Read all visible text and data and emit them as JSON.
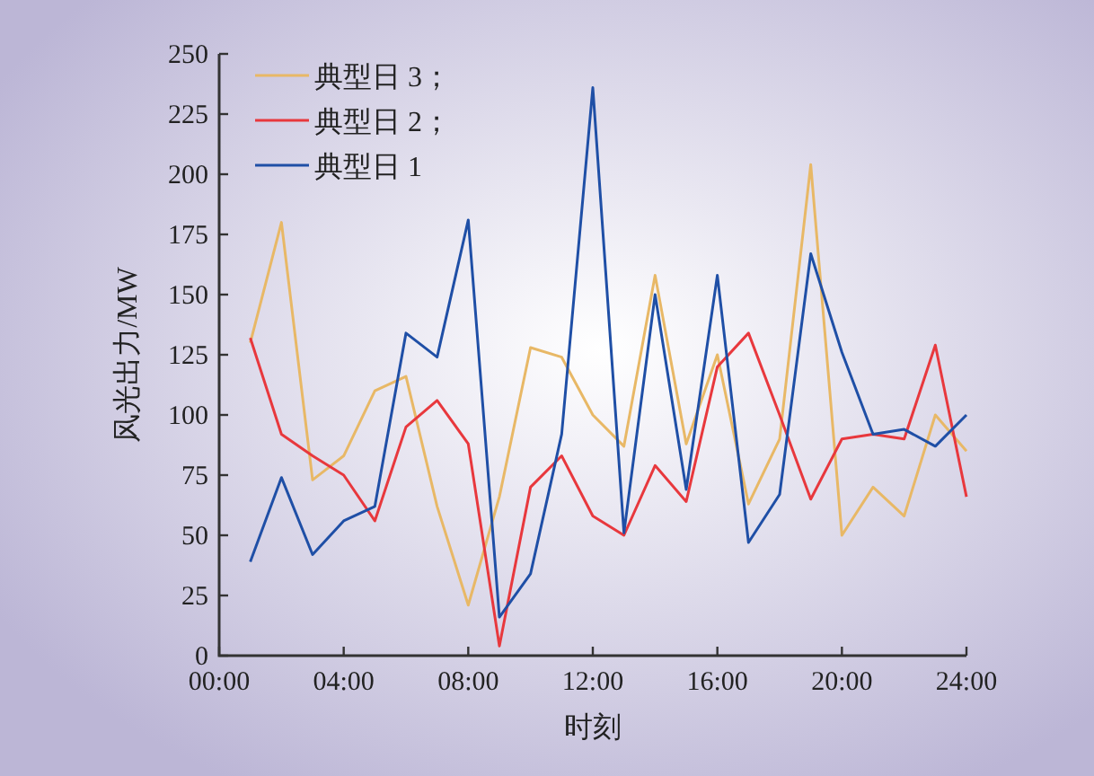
{
  "chart_data": {
    "type": "line",
    "xlabel": "时刻",
    "ylabel": "风光出力/MW",
    "x": [
      1,
      2,
      3,
      4,
      5,
      6,
      7,
      8,
      9,
      10,
      11,
      12,
      13,
      14,
      15,
      16,
      17,
      18,
      19,
      20,
      21,
      22,
      23,
      24
    ],
    "series": [
      {
        "name": "典型日 3；",
        "color": "#e8b866",
        "values": [
          130,
          180,
          73,
          83,
          110,
          116,
          62,
          21,
          66,
          128,
          124,
          100,
          87,
          158,
          88,
          125,
          63,
          90,
          204,
          50,
          70,
          58,
          100,
          85
        ]
      },
      {
        "name": "典型日 2；",
        "color": "#e8383d",
        "values": [
          132,
          92,
          83,
          75,
          56,
          95,
          106,
          88,
          4,
          70,
          83,
          58,
          50,
          79,
          64,
          120,
          134,
          100,
          65,
          90,
          92,
          90,
          129,
          66
        ]
      },
      {
        "name": "典型日 1",
        "color": "#1f4fa6",
        "values": [
          39,
          74,
          42,
          56,
          62,
          134,
          124,
          181,
          16,
          34,
          92,
          236,
          51,
          150,
          69,
          158,
          47,
          67,
          167,
          126,
          92,
          94,
          87,
          100
        ]
      }
    ],
    "xlim": [
      0,
      24
    ],
    "ylim": [
      0,
      250
    ],
    "xticks": [
      {
        "value": 0,
        "label": "00:00"
      },
      {
        "value": 4,
        "label": "04:00"
      },
      {
        "value": 8,
        "label": "08:00"
      },
      {
        "value": 12,
        "label": "12:00"
      },
      {
        "value": 16,
        "label": "16:00"
      },
      {
        "value": 20,
        "label": "20:00"
      },
      {
        "value": 24,
        "label": "24:00"
      }
    ],
    "yticks": [
      0,
      25,
      50,
      75,
      100,
      125,
      150,
      175,
      200,
      225,
      250
    ],
    "legend": "top left",
    "grid": false,
    "marker": "none",
    "line_style": "solid"
  }
}
